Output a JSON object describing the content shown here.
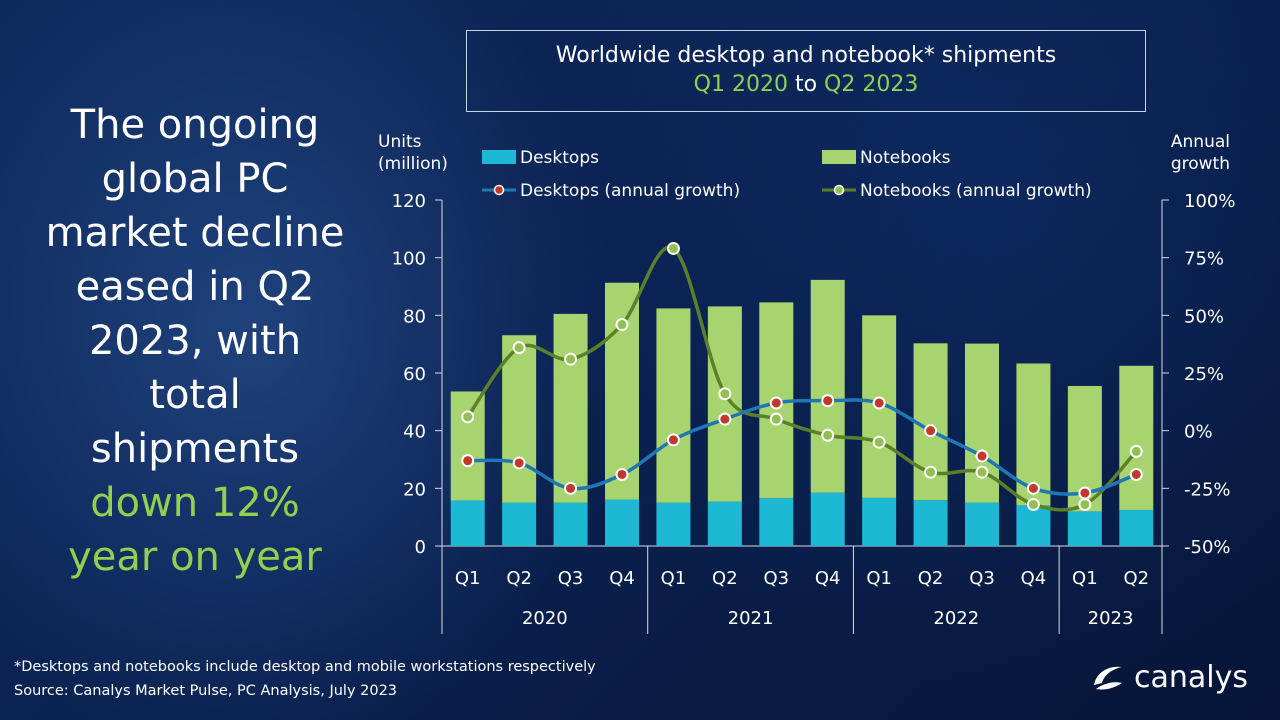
{
  "headline": {
    "lines": [
      "The ongoing",
      "global PC",
      "market decline",
      "eased in Q2",
      "2023, with",
      "total",
      "shipments"
    ],
    "accent_lines": [
      "down 12%",
      "year on year"
    ]
  },
  "chart_title": {
    "line1": "Worldwide desktop and notebook* shipments",
    "line2_start": "Q1 2020",
    "line2_mid": "to",
    "line2_end": "Q2 2023"
  },
  "footnote": {
    "line1": "*Desktops and notebooks  include desktop and mobile workstations respectively",
    "line2": "Source: Canalys Market Pulse, PC Analysis, July 2023"
  },
  "logo": {
    "text": "canalys",
    "icon": "canalys-swoosh-icon"
  },
  "colors": {
    "desktops": "#1cb8d4",
    "notebooks": "#a8d46f",
    "desktops_line": "#1f77b4",
    "notebooks_line": "#5c7f2a",
    "marker_desktops": "#c0392b",
    "marker_notebooks": "#92c050",
    "accent": "#92d050"
  },
  "chart_data": {
    "type": "bar",
    "stacked": true,
    "categories": [
      "Q1",
      "Q2",
      "Q3",
      "Q4",
      "Q1",
      "Q2",
      "Q3",
      "Q4",
      "Q1",
      "Q2",
      "Q3",
      "Q4",
      "Q1",
      "Q2"
    ],
    "years": [
      {
        "label": "2020",
        "count": 4
      },
      {
        "label": "2021",
        "count": 4
      },
      {
        "label": "2022",
        "count": 4
      },
      {
        "label": "2023",
        "count": 2
      }
    ],
    "ylabel_left": [
      "Units",
      "(million)"
    ],
    "ylabel_right": [
      "Annual",
      "growth"
    ],
    "ylim_left": [
      0,
      120
    ],
    "yticks_left": [
      "0",
      "20",
      "40",
      "60",
      "80",
      "100",
      "120"
    ],
    "ylim_right": [
      -50,
      100
    ],
    "yticks_right": [
      "-50%",
      "-25%",
      "0%",
      "25%",
      "50%",
      "75%",
      "100%"
    ],
    "series": [
      {
        "name": "Desktops",
        "kind": "bar",
        "values": [
          15.8,
          15.0,
          15.0,
          16.1,
          15.0,
          15.4,
          16.6,
          18.5,
          16.7,
          15.9,
          15.0,
          14.1,
          12.0,
          12.5
        ]
      },
      {
        "name": "Notebooks",
        "kind": "bar",
        "values": [
          37.8,
          58.1,
          65.5,
          75.2,
          67.4,
          67.7,
          67.9,
          73.8,
          63.3,
          54.4,
          55.2,
          49.2,
          43.5,
          50.0
        ]
      },
      {
        "name": "Desktops (annual growth)",
        "kind": "line",
        "axis": "right",
        "values": [
          -13,
          -14,
          -25,
          -19,
          -4,
          5,
          12,
          13,
          12,
          0,
          -11,
          -25,
          -27,
          -19
        ]
      },
      {
        "name": "Notebooks (annual growth)",
        "kind": "line",
        "axis": "right",
        "values": [
          6,
          36,
          31,
          46,
          79,
          16,
          5,
          -2,
          -5,
          -18,
          -18,
          -32,
          -32,
          -9
        ]
      }
    ],
    "legend": [
      {
        "label": "Desktops",
        "type": "box",
        "color": "#1cb8d4"
      },
      {
        "label": "Notebooks",
        "type": "box",
        "color": "#a8d46f"
      },
      {
        "label": "Desktops (annual growth)",
        "type": "line",
        "color": "#1f77b4"
      },
      {
        "label": "Notebooks (annual growth)",
        "type": "line",
        "color": "#5c7f2a"
      }
    ],
    "legend_placement": "top"
  }
}
